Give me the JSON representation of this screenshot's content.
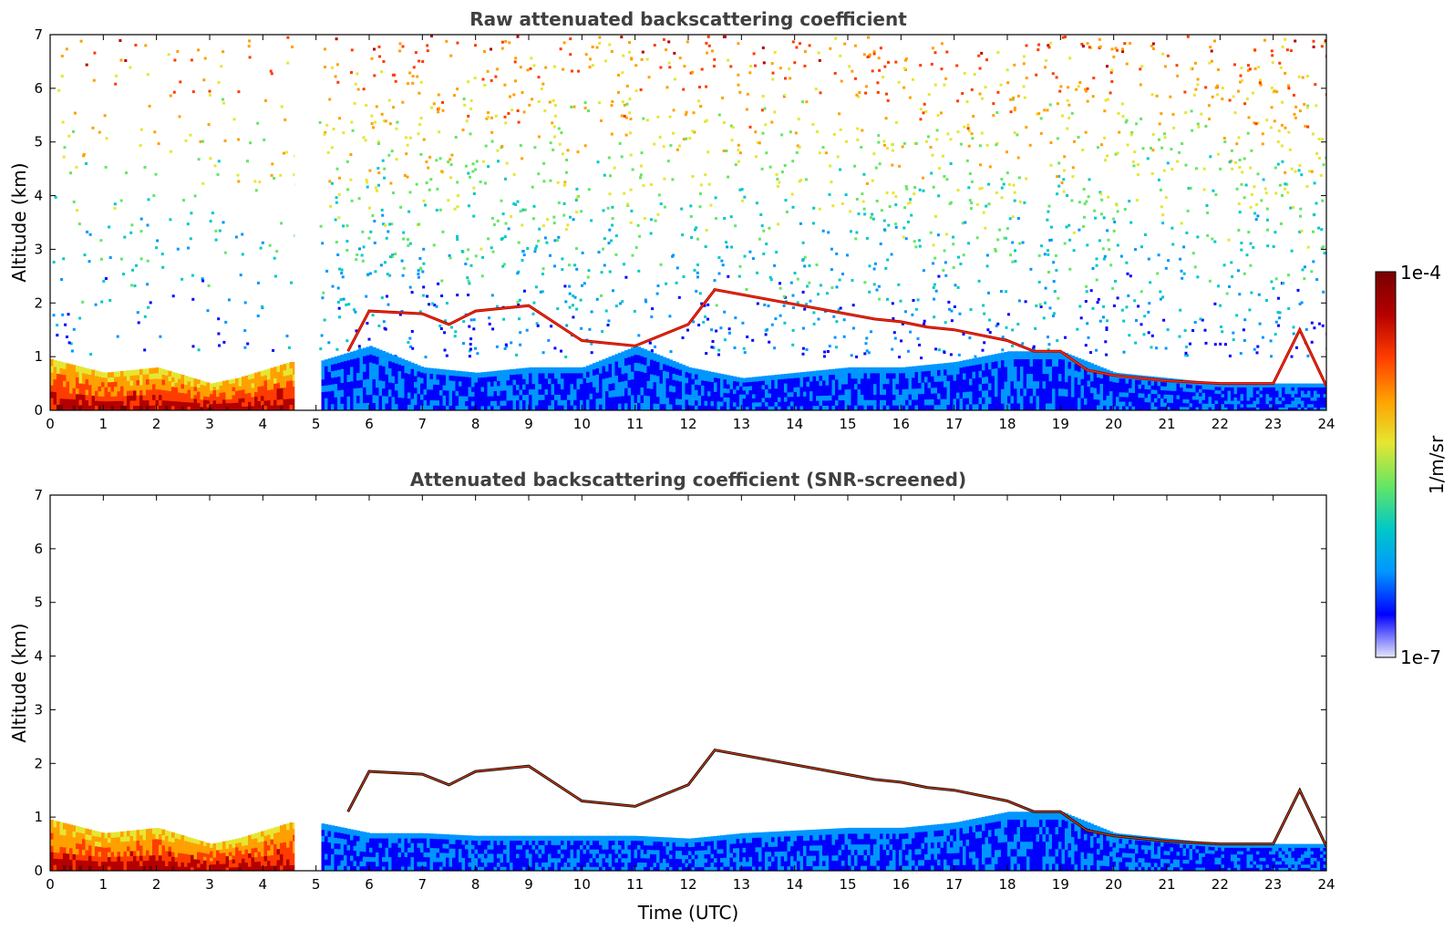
{
  "chart_data": [
    {
      "type": "heatmap",
      "title": "Raw attenuated backscattering coefficient",
      "xlabel": "",
      "ylabel": "Altitude (km)",
      "xlim": [
        0,
        24
      ],
      "ylim": [
        0,
        7
      ],
      "xticks": [
        "0",
        "1",
        "2",
        "3",
        "4",
        "5",
        "6",
        "7",
        "8",
        "9",
        "10",
        "11",
        "12",
        "13",
        "14",
        "15",
        "16",
        "17",
        "18",
        "19",
        "20",
        "21",
        "22",
        "23",
        "24"
      ],
      "yticks": [
        "0",
        "1",
        "2",
        "3",
        "4",
        "5",
        "6",
        "7"
      ],
      "screened": false,
      "data_gap_utc": [
        4.6,
        5.05
      ],
      "layer_top_km": [
        [
          0,
          0.95
        ],
        [
          1,
          0.7
        ],
        [
          2,
          0.8
        ],
        [
          3,
          0.5
        ],
        [
          3.5,
          0.6
        ],
        [
          4,
          0.75
        ],
        [
          4.5,
          0.9
        ],
        [
          5,
          0.9
        ],
        [
          6,
          1.2
        ],
        [
          7,
          0.8
        ],
        [
          8,
          0.7
        ],
        [
          9,
          0.8
        ],
        [
          10,
          0.8
        ],
        [
          11,
          1.2
        ],
        [
          12,
          0.8
        ],
        [
          13,
          0.6
        ],
        [
          14,
          0.7
        ],
        [
          15,
          0.8
        ],
        [
          16,
          0.8
        ],
        [
          17,
          0.9
        ],
        [
          18,
          1.1
        ],
        [
          19,
          1.1
        ],
        [
          20,
          0.7
        ],
        [
          21,
          0.6
        ],
        [
          22,
          0.5
        ],
        [
          23,
          0.5
        ],
        [
          24,
          0.5
        ]
      ],
      "cloud_base_km": [
        [
          5.6,
          1.1
        ],
        [
          6,
          1.85
        ],
        [
          7,
          1.8
        ],
        [
          7.5,
          1.6
        ],
        [
          8,
          1.85
        ],
        [
          9,
          1.95
        ],
        [
          10,
          1.3
        ],
        [
          11,
          1.2
        ],
        [
          12,
          1.6
        ],
        [
          12.5,
          2.25
        ],
        [
          15.5,
          1.7
        ],
        [
          16,
          1.65
        ],
        [
          16.5,
          1.55
        ],
        [
          17,
          1.5
        ],
        [
          18,
          1.3
        ],
        [
          18.5,
          1.1
        ],
        [
          19,
          1.1
        ],
        [
          19.5,
          0.75
        ],
        [
          20,
          0.65
        ],
        [
          21,
          0.55
        ],
        [
          22,
          0.5
        ],
        [
          23,
          0.5
        ],
        [
          23.5,
          1.5
        ],
        [
          24,
          0.45
        ]
      ]
    },
    {
      "type": "heatmap",
      "title": "Attenuated backscattering coefficient (SNR-screened)",
      "xlabel": "Time (UTC)",
      "ylabel": "Altitude (km)",
      "xlim": [
        0,
        24
      ],
      "ylim": [
        0,
        7
      ],
      "xticks": [
        "0",
        "1",
        "2",
        "3",
        "4",
        "5",
        "6",
        "7",
        "8",
        "9",
        "10",
        "11",
        "12",
        "13",
        "14",
        "15",
        "16",
        "17",
        "18",
        "19",
        "20",
        "21",
        "22",
        "23",
        "24"
      ],
      "yticks": [
        "0",
        "1",
        "2",
        "3",
        "4",
        "5",
        "6",
        "7"
      ],
      "screened": true,
      "data_gap_utc": [
        4.6,
        5.05
      ],
      "layer_top_km": [
        [
          0,
          0.95
        ],
        [
          1,
          0.7
        ],
        [
          2,
          0.8
        ],
        [
          3,
          0.5
        ],
        [
          3.5,
          0.6
        ],
        [
          4,
          0.75
        ],
        [
          4.5,
          0.9
        ],
        [
          5,
          0.9
        ],
        [
          6,
          0.7
        ],
        [
          7,
          0.7
        ],
        [
          8,
          0.65
        ],
        [
          9,
          0.65
        ],
        [
          10,
          0.65
        ],
        [
          11,
          0.65
        ],
        [
          12,
          0.6
        ],
        [
          13,
          0.7
        ],
        [
          14,
          0.75
        ],
        [
          15,
          0.8
        ],
        [
          16,
          0.8
        ],
        [
          17,
          0.9
        ],
        [
          18,
          1.1
        ],
        [
          19,
          1.1
        ],
        [
          20,
          0.7
        ],
        [
          21,
          0.6
        ],
        [
          22,
          0.5
        ],
        [
          23,
          0.5
        ],
        [
          24,
          0.5
        ]
      ],
      "cloud_base_km": [
        [
          5.6,
          1.1
        ],
        [
          6,
          1.85
        ],
        [
          7,
          1.8
        ],
        [
          7.5,
          1.6
        ],
        [
          8,
          1.85
        ],
        [
          9,
          1.95
        ],
        [
          10,
          1.3
        ],
        [
          11,
          1.2
        ],
        [
          12,
          1.6
        ],
        [
          12.5,
          2.25
        ],
        [
          15.5,
          1.7
        ],
        [
          16,
          1.65
        ],
        [
          16.5,
          1.55
        ],
        [
          17,
          1.5
        ],
        [
          18,
          1.3
        ],
        [
          18.5,
          1.1
        ],
        [
          19,
          1.1
        ],
        [
          19.5,
          0.75
        ],
        [
          20,
          0.65
        ],
        [
          21,
          0.55
        ],
        [
          22,
          0.5
        ],
        [
          23,
          0.5
        ],
        [
          23.5,
          1.5
        ],
        [
          24,
          0.45
        ]
      ]
    }
  ],
  "colorbar": {
    "label": "1/m/sr",
    "max_label": "1e-4",
    "min_label": "1e-7",
    "colors": [
      "#e6e6fa",
      "#0000ff",
      "#0096ff",
      "#00c8c8",
      "#64e664",
      "#e6e632",
      "#ffa000",
      "#ff3c00",
      "#b40000",
      "#780000"
    ]
  }
}
